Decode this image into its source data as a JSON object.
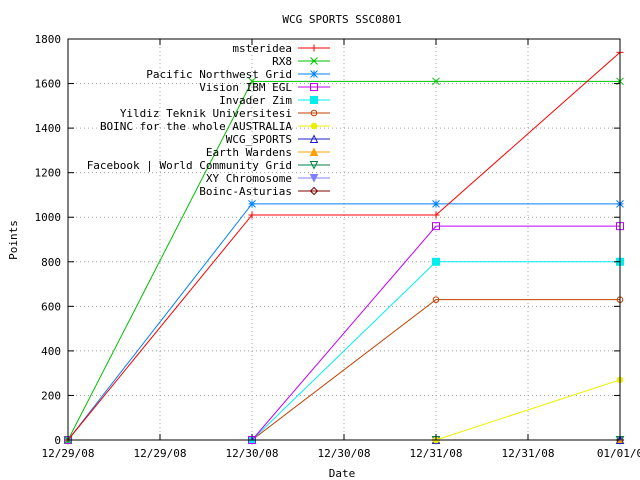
{
  "chart_data": {
    "type": "line",
    "title": "WCG SPORTS SSC0801",
    "xlabel": "Date",
    "ylabel": "Points",
    "x_ticks": [
      "12/29/08",
      "12/29/08",
      "12/30/08",
      "12/30/08",
      "12/31/08",
      "12/31/08",
      "01/01/0"
    ],
    "x_range": [
      0,
      3
    ],
    "ylim": [
      0,
      1800
    ],
    "y_ticks": [
      0,
      200,
      400,
      600,
      800,
      1000,
      1200,
      1400,
      1600,
      1800
    ],
    "grid": true,
    "legend_position": "top-left",
    "series": [
      {
        "name": "msteridea",
        "color": "#ff0000",
        "marker": "plus",
        "x": [
          0,
          1,
          2,
          3
        ],
        "y": [
          0,
          1010,
          1010,
          1740
        ]
      },
      {
        "name": "RX8",
        "color": "#00c000",
        "marker": "cross",
        "x": [
          0,
          1,
          2,
          3
        ],
        "y": [
          0,
          1610,
          1610,
          1610
        ]
      },
      {
        "name": "Pacific Northwest Grid",
        "color": "#0080ff",
        "marker": "star",
        "x": [
          0,
          1,
          2,
          3
        ],
        "y": [
          0,
          1060,
          1060,
          1060
        ]
      },
      {
        "name": "Vision IBM EGL",
        "color": "#c000ff",
        "marker": "square",
        "x": [
          0,
          1,
          2,
          3
        ],
        "y": [
          0,
          0,
          960,
          960
        ]
      },
      {
        "name": "Invader Zim",
        "color": "#00eeee",
        "marker": "filled-square",
        "x": [
          0,
          1,
          2,
          3
        ],
        "y": [
          0,
          0,
          800,
          800
        ]
      },
      {
        "name": "Yildiz Teknik Universitesi",
        "color": "#c04000",
        "marker": "circle",
        "x": [
          0,
          1,
          2,
          3
        ],
        "y": [
          0,
          0,
          630,
          630
        ]
      },
      {
        "name": "BOINC for the whole AUSTRALIA",
        "color": "#eeee00",
        "marker": "filled-circle",
        "x": [
          0,
          1,
          2,
          3
        ],
        "y": [
          0,
          0,
          0,
          270
        ]
      },
      {
        "name": "WCG_SPORTS",
        "color": "#2020c0",
        "marker": "triangle",
        "x": [
          0,
          1,
          2,
          3
        ],
        "y": [
          0,
          0,
          0,
          0
        ]
      },
      {
        "name": "Earth Wardens",
        "color": "#ffa000",
        "marker": "filled-triangle",
        "x": [
          0,
          1,
          2,
          3
        ],
        "y": [
          0,
          0,
          0,
          0
        ]
      },
      {
        "name": "Facebook | World Community Grid",
        "color": "#008040",
        "marker": "inverted-triangle",
        "x": [
          0,
          1,
          2,
          3
        ],
        "y": [
          0,
          0,
          0,
          0
        ]
      },
      {
        "name": "XY Chromosome",
        "color": "#8080ff",
        "marker": "filled-inverted-triangle",
        "x": [
          0,
          1,
          2,
          3
        ],
        "y": [
          0,
          0,
          0,
          0
        ]
      },
      {
        "name": "Boinc-Asturias",
        "color": "#800000",
        "marker": "diamond",
        "x": [
          0,
          1,
          2,
          3
        ],
        "y": [
          0,
          0,
          0,
          0
        ]
      }
    ]
  }
}
